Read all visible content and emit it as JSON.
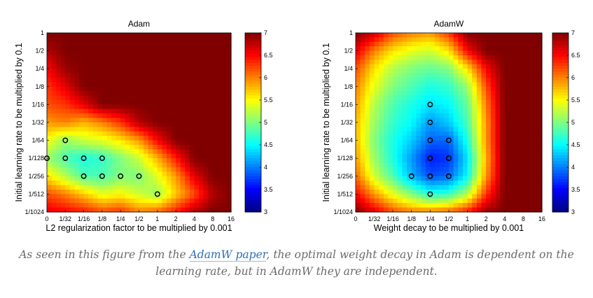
{
  "caption": {
    "before": "As seen in this figure from the ",
    "link": "AdamW paper",
    "after": ", the optimal weight decay in Adam is dependent on the learning rate, but in AdamW they are independent."
  },
  "chart_data": [
    {
      "type": "heatmap",
      "title": "Adam",
      "xlabel": "L2 regularization factor to be multiplied by 0.001",
      "ylabel": "Initial learning rate to be multiplied by 0.1",
      "x_ticks": [
        "0",
        "1/32",
        "1/16",
        "1/8",
        "1/4",
        "1/2",
        "1",
        "2",
        "4",
        "8",
        "16"
      ],
      "y_ticks": [
        "1",
        "1/2",
        "1/4",
        "1/8",
        "1/16",
        "1/32",
        "1/64",
        "1/128",
        "1/256",
        "1/512",
        "1/1024"
      ],
      "colorbar": {
        "min": 3,
        "max": 7,
        "ticks": [
          3,
          3.5,
          4,
          4.5,
          5,
          5.5,
          6,
          6.5,
          7
        ]
      },
      "values": [
        [
          7,
          7,
          7,
          7,
          7,
          7,
          7,
          7,
          7,
          7,
          7
        ],
        [
          6.8,
          7,
          7,
          7,
          7,
          7,
          7,
          7,
          7,
          7,
          7
        ],
        [
          6.5,
          6.9,
          7,
          7,
          7,
          7,
          7,
          7,
          7,
          7,
          7
        ],
        [
          6.3,
          6.6,
          7,
          7,
          7,
          7,
          7,
          7,
          7,
          7,
          7
        ],
        [
          6.2,
          6.3,
          6.6,
          7,
          7,
          7,
          7,
          7,
          7,
          7,
          7
        ],
        [
          5.9,
          6.0,
          5.8,
          6.0,
          6.3,
          6.8,
          7,
          7,
          7,
          7,
          7
        ],
        [
          5.5,
          5.1,
          5.3,
          5.4,
          5.6,
          5.9,
          6.5,
          7,
          7,
          7,
          7
        ],
        [
          5.1,
          4.8,
          4.6,
          4.7,
          5.0,
          5.3,
          5.8,
          6.4,
          7,
          7,
          7
        ],
        [
          5.6,
          5.2,
          4.8,
          4.8,
          5.0,
          5.0,
          5.4,
          5.9,
          6.6,
          7,
          7
        ],
        [
          6.2,
          6.0,
          5.7,
          5.4,
          5.5,
          5.3,
          5.1,
          5.7,
          6.2,
          6.8,
          7
        ],
        [
          6.6,
          6.5,
          6.4,
          6.2,
          6.3,
          6.0,
          6.1,
          6.4,
          6.8,
          7,
          7
        ]
      ],
      "markers": [
        [
          1,
          6
        ],
        [
          0,
          7
        ],
        [
          1,
          7
        ],
        [
          2,
          7
        ],
        [
          3,
          7
        ],
        [
          2,
          8
        ],
        [
          3,
          8
        ],
        [
          4,
          8
        ],
        [
          5,
          8
        ],
        [
          6,
          9
        ]
      ]
    },
    {
      "type": "heatmap",
      "title": "AdamW",
      "xlabel": "Weight decay to be multiplied by 0.001",
      "ylabel": "Initial learning rate to be multiplied by 0.1",
      "x_ticks": [
        "0",
        "1/32",
        "1/16",
        "1/8",
        "1/4",
        "1/2",
        "1",
        "2",
        "4",
        "8",
        "16"
      ],
      "y_ticks": [
        "1",
        "1/2",
        "1/4",
        "1/8",
        "1/16",
        "1/32",
        "1/64",
        "1/128",
        "1/256",
        "1/512",
        "1/1024"
      ],
      "colorbar": {
        "min": 3,
        "max": 7,
        "ticks": [
          3,
          3.5,
          4,
          4.5,
          5,
          5.5,
          6,
          6.5,
          7
        ]
      },
      "values": [
        [
          7,
          6.7,
          6.2,
          6.0,
          5.9,
          6.3,
          7,
          7,
          7,
          7,
          7
        ],
        [
          6.6,
          6.0,
          5.6,
          5.4,
          5.3,
          5.6,
          6.5,
          7,
          7,
          7,
          7
        ],
        [
          6.2,
          5.6,
          5.2,
          5.0,
          4.9,
          5.0,
          5.6,
          6.5,
          7,
          7,
          7
        ],
        [
          6.0,
          5.4,
          5.0,
          4.8,
          4.6,
          4.7,
          5.1,
          6.2,
          7,
          7,
          7
        ],
        [
          5.9,
          5.2,
          4.8,
          4.6,
          4.4,
          4.5,
          4.9,
          6.0,
          7,
          7,
          7
        ],
        [
          5.8,
          5.1,
          4.7,
          4.5,
          4.1,
          4.3,
          4.8,
          5.9,
          7,
          7,
          7
        ],
        [
          5.8,
          5.0,
          4.6,
          4.3,
          3.9,
          3.9,
          4.6,
          5.9,
          7,
          7,
          7
        ],
        [
          5.9,
          5.1,
          4.6,
          4.1,
          3.6,
          3.7,
          4.4,
          5.8,
          7,
          7,
          7
        ],
        [
          6.1,
          5.3,
          4.8,
          4.2,
          3.8,
          3.9,
          4.5,
          5.9,
          7,
          7,
          7
        ],
        [
          6.5,
          5.9,
          5.4,
          5.0,
          4.6,
          4.7,
          5.2,
          6.3,
          7,
          7,
          7
        ],
        [
          7,
          6.6,
          6.2,
          6.0,
          6.0,
          6.1,
          6.4,
          6.9,
          7,
          7,
          7
        ]
      ],
      "markers": [
        [
          4,
          4
        ],
        [
          4,
          5
        ],
        [
          4,
          6
        ],
        [
          5,
          6
        ],
        [
          4,
          7
        ],
        [
          5,
          7
        ],
        [
          3,
          8
        ],
        [
          4,
          8
        ],
        [
          5,
          8
        ],
        [
          4,
          9
        ]
      ]
    }
  ]
}
